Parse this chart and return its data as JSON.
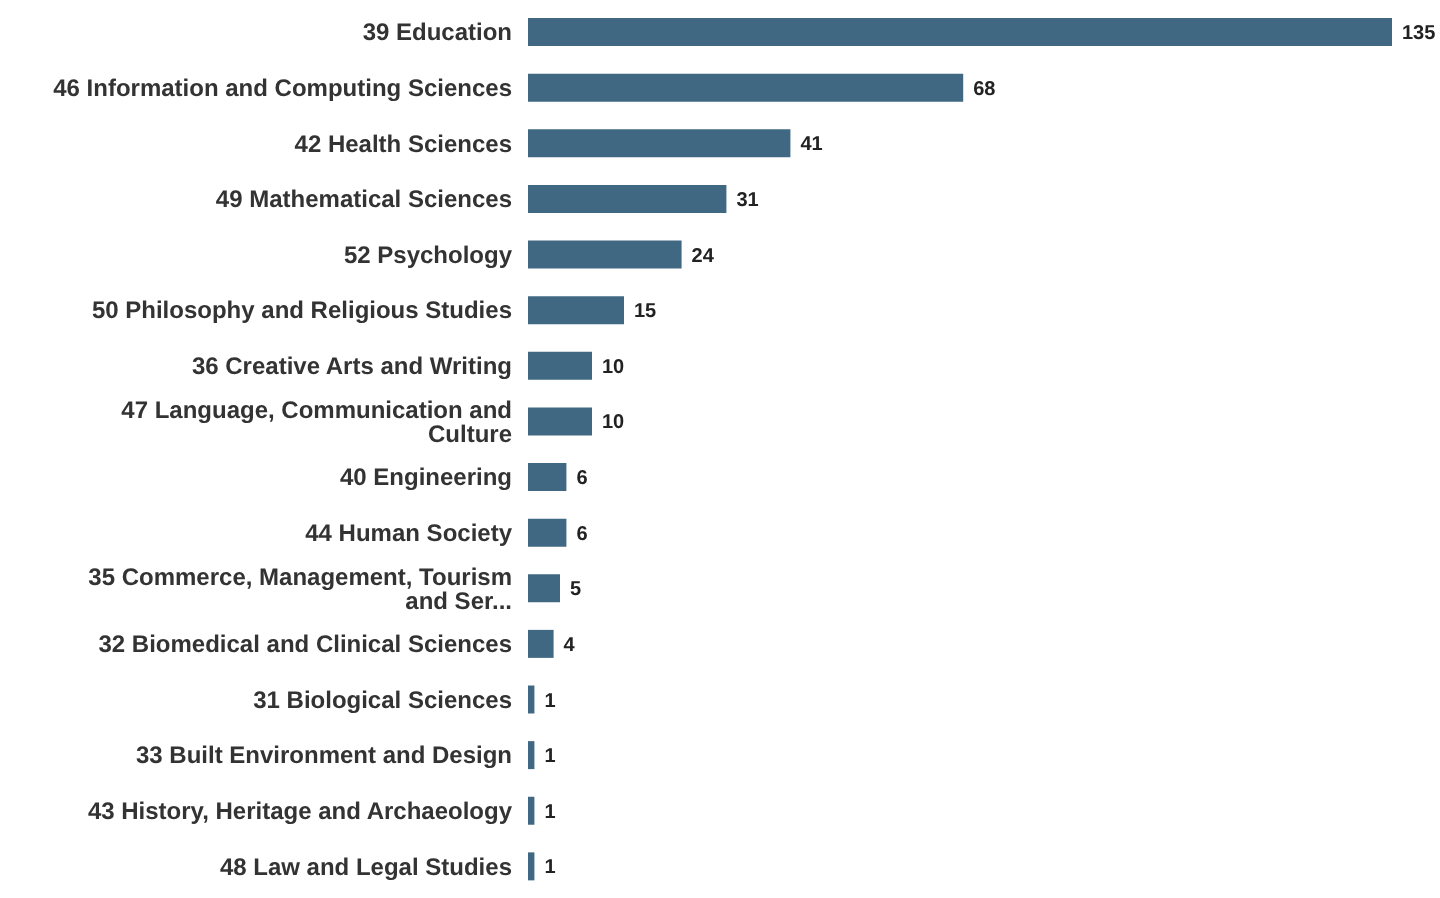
{
  "chart_data": {
    "type": "bar",
    "orientation": "horizontal",
    "categories": [
      "39 Education",
      "46 Information and Computing Sciences",
      "42 Health Sciences",
      "49 Mathematical Sciences",
      "52 Psychology",
      "50 Philosophy and Religious Studies",
      "36 Creative Arts and Writing",
      "47 Language, Communication and Culture",
      "40 Engineering",
      "44 Human Society",
      "35 Commerce, Management, Tourism and Ser...",
      "32 Biomedical and Clinical Sciences",
      "31 Biological Sciences",
      "33 Built Environment and Design",
      "43 History, Heritage and Archaeology",
      "48 Law and Legal Studies"
    ],
    "values": [
      135,
      68,
      41,
      31,
      24,
      15,
      10,
      10,
      6,
      6,
      5,
      4,
      1,
      1,
      1,
      1
    ],
    "color": "#406882",
    "data_labels": true,
    "grid": false,
    "legend": false
  }
}
